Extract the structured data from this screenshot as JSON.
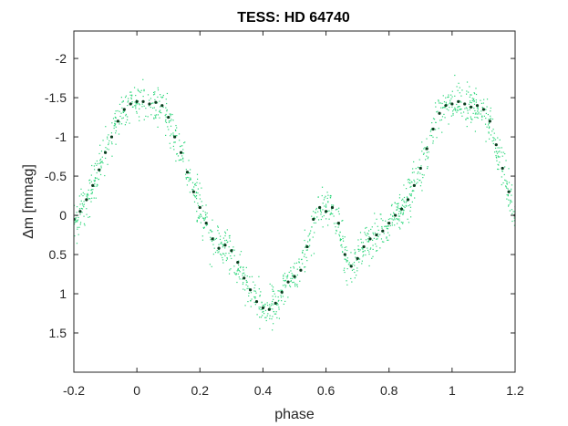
{
  "chart_data": {
    "type": "scatter",
    "title": "TESS: HD 64740",
    "xlabel": "phase",
    "ylabel": "Δm  [mmag]",
    "xlim": [
      -0.2,
      1.2
    ],
    "ylim": [
      2.0,
      -2.35
    ],
    "y_reversed": true,
    "grid": false,
    "xticks": [
      -0.2,
      0,
      0.2,
      0.4,
      0.6,
      0.8,
      1,
      1.2
    ],
    "xtick_labels": [
      "-0.2",
      "0",
      "0.2",
      "0.4",
      "0.6",
      "0.8",
      "1",
      "1.2"
    ],
    "yticks": [
      -2,
      -1.5,
      -1,
      -0.5,
      0,
      0.5,
      1,
      1.5
    ],
    "ytick_labels": [
      "-2",
      "-1.5",
      "-1",
      "-0.5",
      "0",
      "0.5",
      "1",
      "1.5"
    ],
    "series": [
      {
        "kind": "observations",
        "color": "#2bd67a",
        "marker": "dot",
        "scatter_sigma": 0.13,
        "n_points": 1400
      },
      {
        "kind": "binned_mean",
        "color": "#0b3d1f",
        "marker": "dot",
        "x": [
          -0.2,
          -0.18,
          -0.16,
          -0.14,
          -0.12,
          -0.1,
          -0.08,
          -0.06,
          -0.04,
          -0.02,
          0,
          0.02,
          0.04,
          0.06,
          0.08,
          0.1,
          0.12,
          0.14,
          0.16,
          0.18,
          0.2,
          0.22,
          0.24,
          0.26,
          0.28,
          0.3,
          0.32,
          0.34,
          0.36,
          0.38,
          0.4,
          0.42,
          0.44,
          0.46,
          0.48,
          0.5,
          0.52,
          0.54,
          0.56,
          0.58,
          0.6,
          0.62,
          0.64,
          0.66,
          0.68,
          0.7,
          0.72,
          0.74,
          0.76,
          0.78,
          0.8,
          0.82,
          0.84,
          0.86,
          0.88,
          0.9,
          0.92,
          0.94,
          0.96,
          0.98,
          1,
          1.02,
          1.04,
          1.06,
          1.08,
          1.1,
          1.12,
          1.14,
          1.16,
          1.18,
          1.2
        ],
        "y": [
          0.05,
          -0.05,
          -0.2,
          -0.38,
          -0.58,
          -0.8,
          -1.0,
          -1.2,
          -1.35,
          -1.42,
          -1.45,
          -1.45,
          -1.42,
          -1.44,
          -1.4,
          -1.25,
          -1.0,
          -0.8,
          -0.55,
          -0.3,
          -0.1,
          0.1,
          0.3,
          0.42,
          0.38,
          0.45,
          0.6,
          0.8,
          0.95,
          1.1,
          1.18,
          1.2,
          1.12,
          0.98,
          0.85,
          0.78,
          0.7,
          0.4,
          0.05,
          -0.1,
          -0.05,
          -0.1,
          0.1,
          0.5,
          0.65,
          0.55,
          0.4,
          0.3,
          0.25,
          0.2,
          0.1,
          0.0,
          -0.08,
          -0.2,
          -0.38,
          -0.6,
          -0.85,
          -1.1,
          -1.3,
          -1.4,
          -1.42,
          -1.45,
          -1.42,
          -1.38,
          -1.4,
          -1.35,
          -1.2,
          -0.9,
          -0.6,
          -0.3,
          0.0
        ]
      }
    ]
  }
}
